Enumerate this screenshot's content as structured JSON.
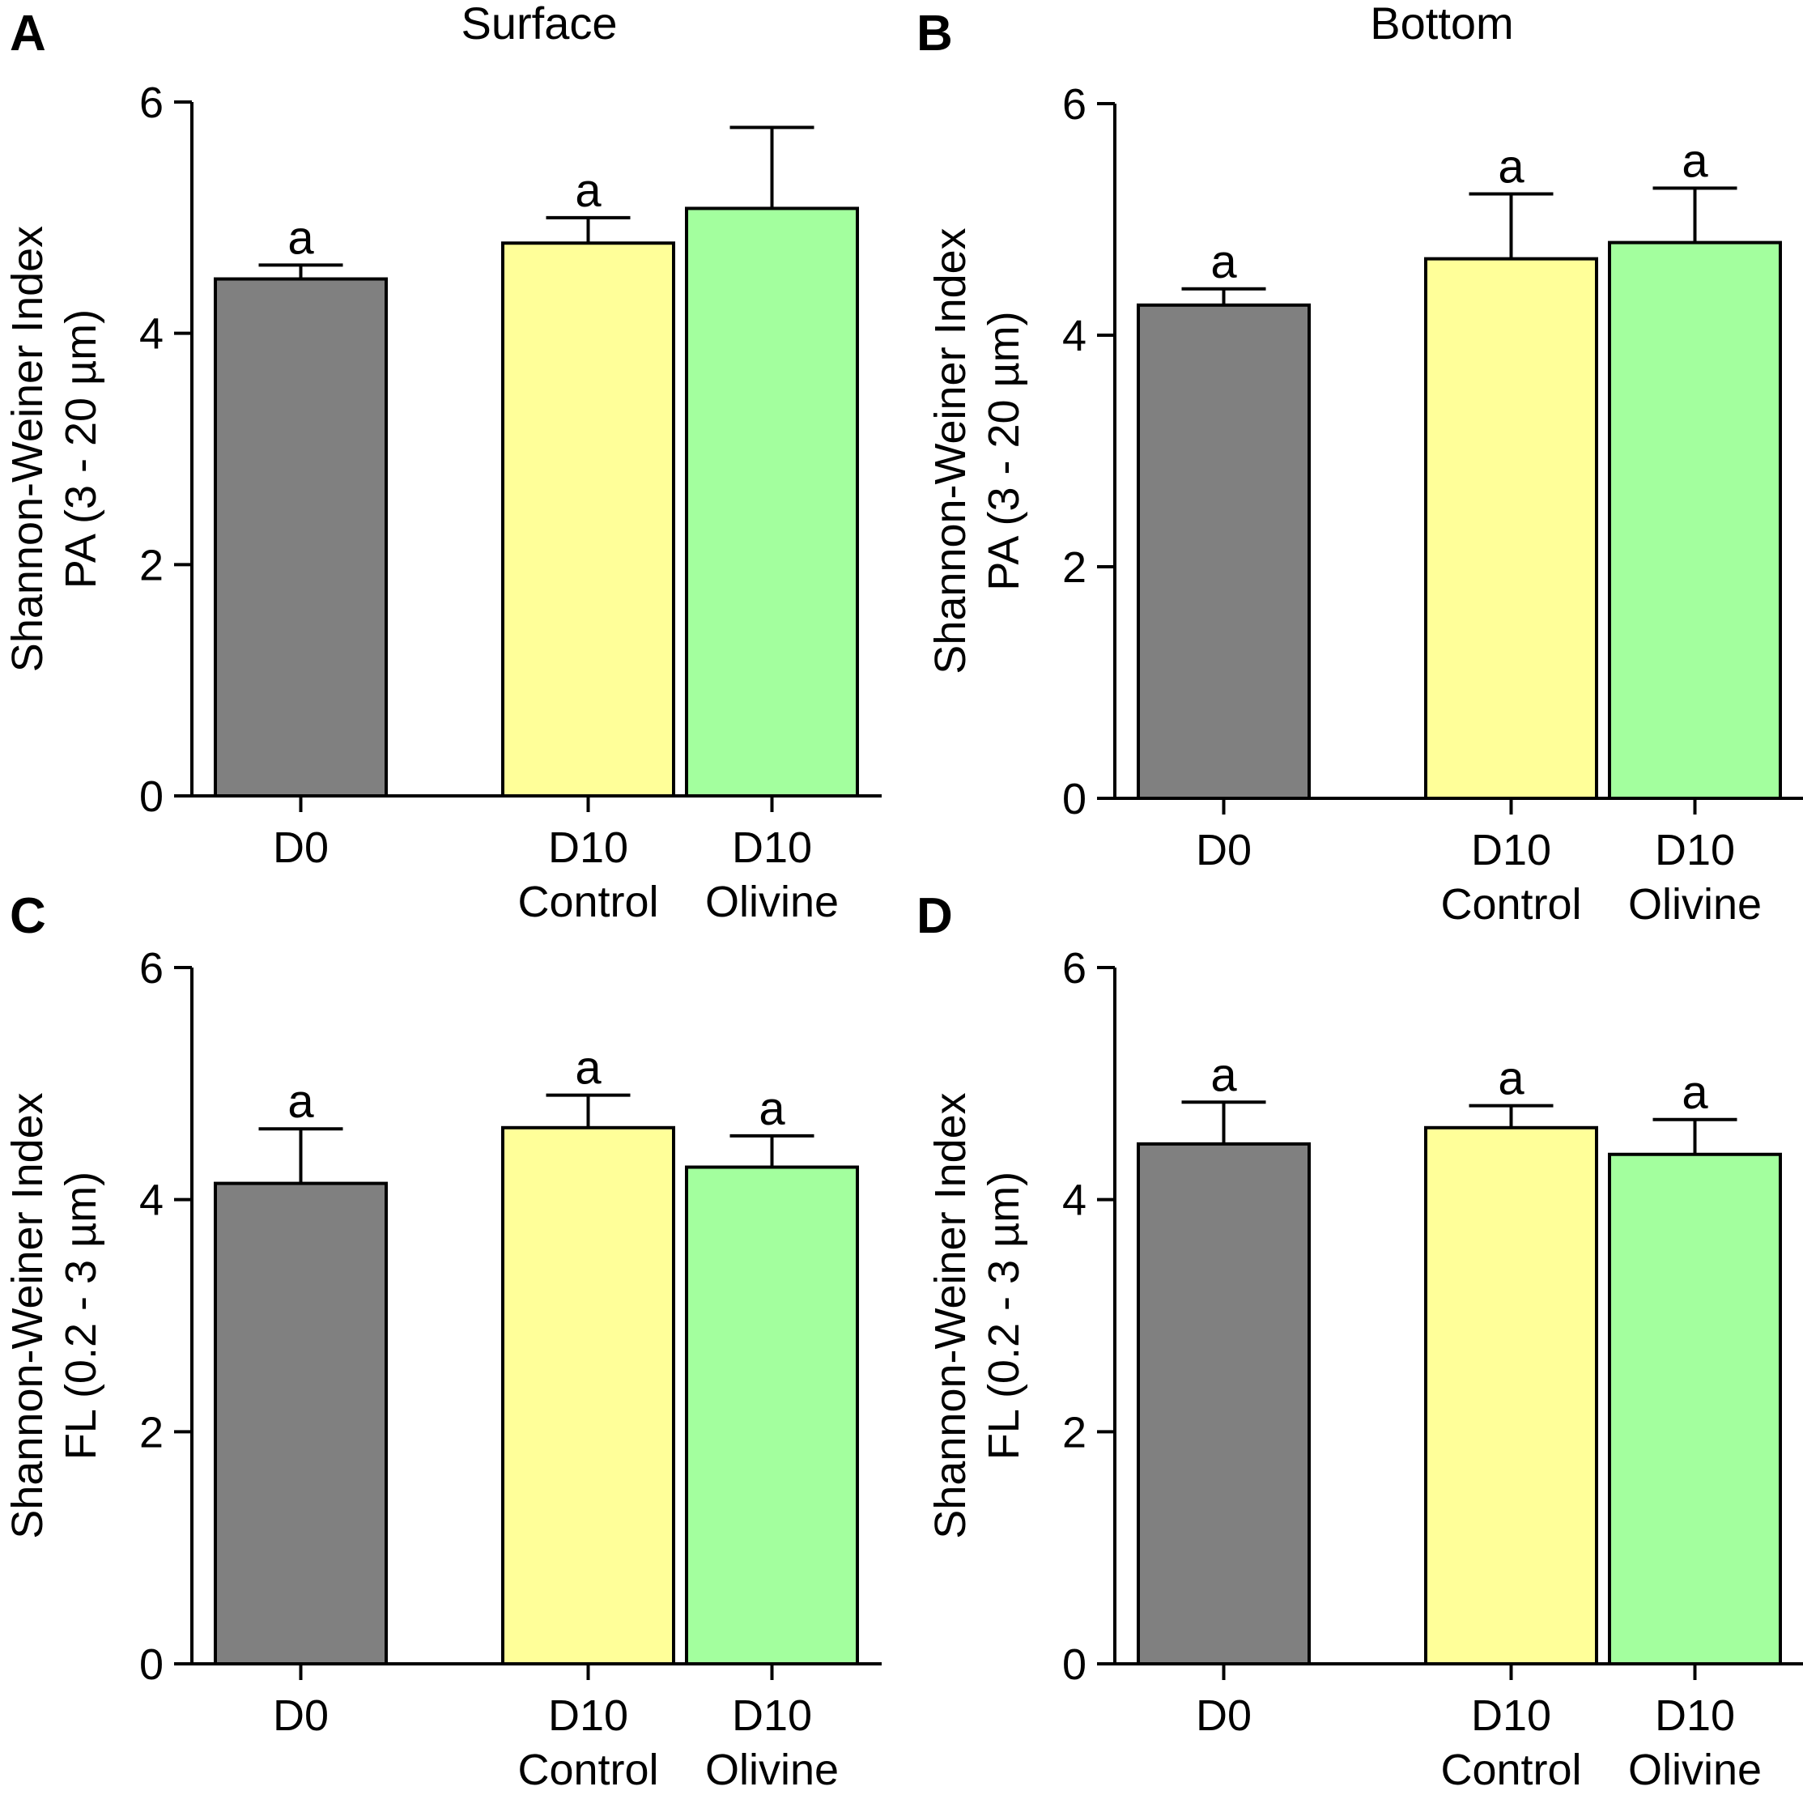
{
  "figure": {
    "column_titles": [
      "Surface",
      "Bottom"
    ]
  },
  "colors": {
    "D0": "#808080",
    "D10 Control": "#ffff99",
    "D10 Olivine": "#a3ff9e",
    "axis": "#000000"
  },
  "chart_data": [
    {
      "panel": "A",
      "type": "bar",
      "title": "Surface",
      "ylabel": [
        "Shannon-Weiner Index",
        "PA (3 - 20 µm)"
      ],
      "ylim": [
        0,
        6
      ],
      "yticks": [
        "0",
        "2",
        "4",
        "6"
      ],
      "categories": [
        [
          "D0"
        ],
        [
          "D10",
          "Control"
        ],
        [
          "D10",
          "Olivine"
        ]
      ],
      "values": [
        4.47,
        4.78,
        5.08
      ],
      "errors": [
        0.12,
        0.22,
        0.7
      ],
      "significance": [
        "a",
        "a",
        ""
      ]
    },
    {
      "panel": "B",
      "type": "bar",
      "title": "Bottom",
      "ylabel": [
        "Shannon-Weiner Index",
        "PA (3 - 20 µm)"
      ],
      "ylim": [
        0,
        6
      ],
      "yticks": [
        "0",
        "2",
        "4",
        "6"
      ],
      "categories": [
        [
          "D0"
        ],
        [
          "D10",
          "Control"
        ],
        [
          "D10",
          "Olivine"
        ]
      ],
      "values": [
        4.26,
        4.66,
        4.8
      ],
      "errors": [
        0.14,
        0.56,
        0.47
      ],
      "significance": [
        "a",
        "a",
        "a"
      ]
    },
    {
      "panel": "C",
      "type": "bar",
      "title": "",
      "ylabel": [
        "Shannon-Weiner Index",
        "FL (0.2 - 3 µm)"
      ],
      "ylim": [
        0,
        6
      ],
      "yticks": [
        "0",
        "2",
        "4",
        "6"
      ],
      "categories": [
        [
          "D0"
        ],
        [
          "D10",
          "Control"
        ],
        [
          "D10",
          "Olivine"
        ]
      ],
      "values": [
        4.14,
        4.62,
        4.28
      ],
      "errors": [
        0.47,
        0.28,
        0.27
      ],
      "significance": [
        "a",
        "a",
        "a"
      ]
    },
    {
      "panel": "D",
      "type": "bar",
      "title": "",
      "ylabel": [
        "Shannon-Weiner Index",
        "FL (0.2 - 3 µm)"
      ],
      "ylim": [
        0,
        6
      ],
      "yticks": [
        "0",
        "2",
        "4",
        "6"
      ],
      "categories": [
        [
          "D0"
        ],
        [
          "D10",
          "Control"
        ],
        [
          "D10",
          "Olivine"
        ]
      ],
      "values": [
        4.48,
        4.62,
        4.39
      ],
      "errors": [
        0.36,
        0.19,
        0.3
      ],
      "significance": [
        "a",
        "a",
        "a"
      ]
    }
  ]
}
